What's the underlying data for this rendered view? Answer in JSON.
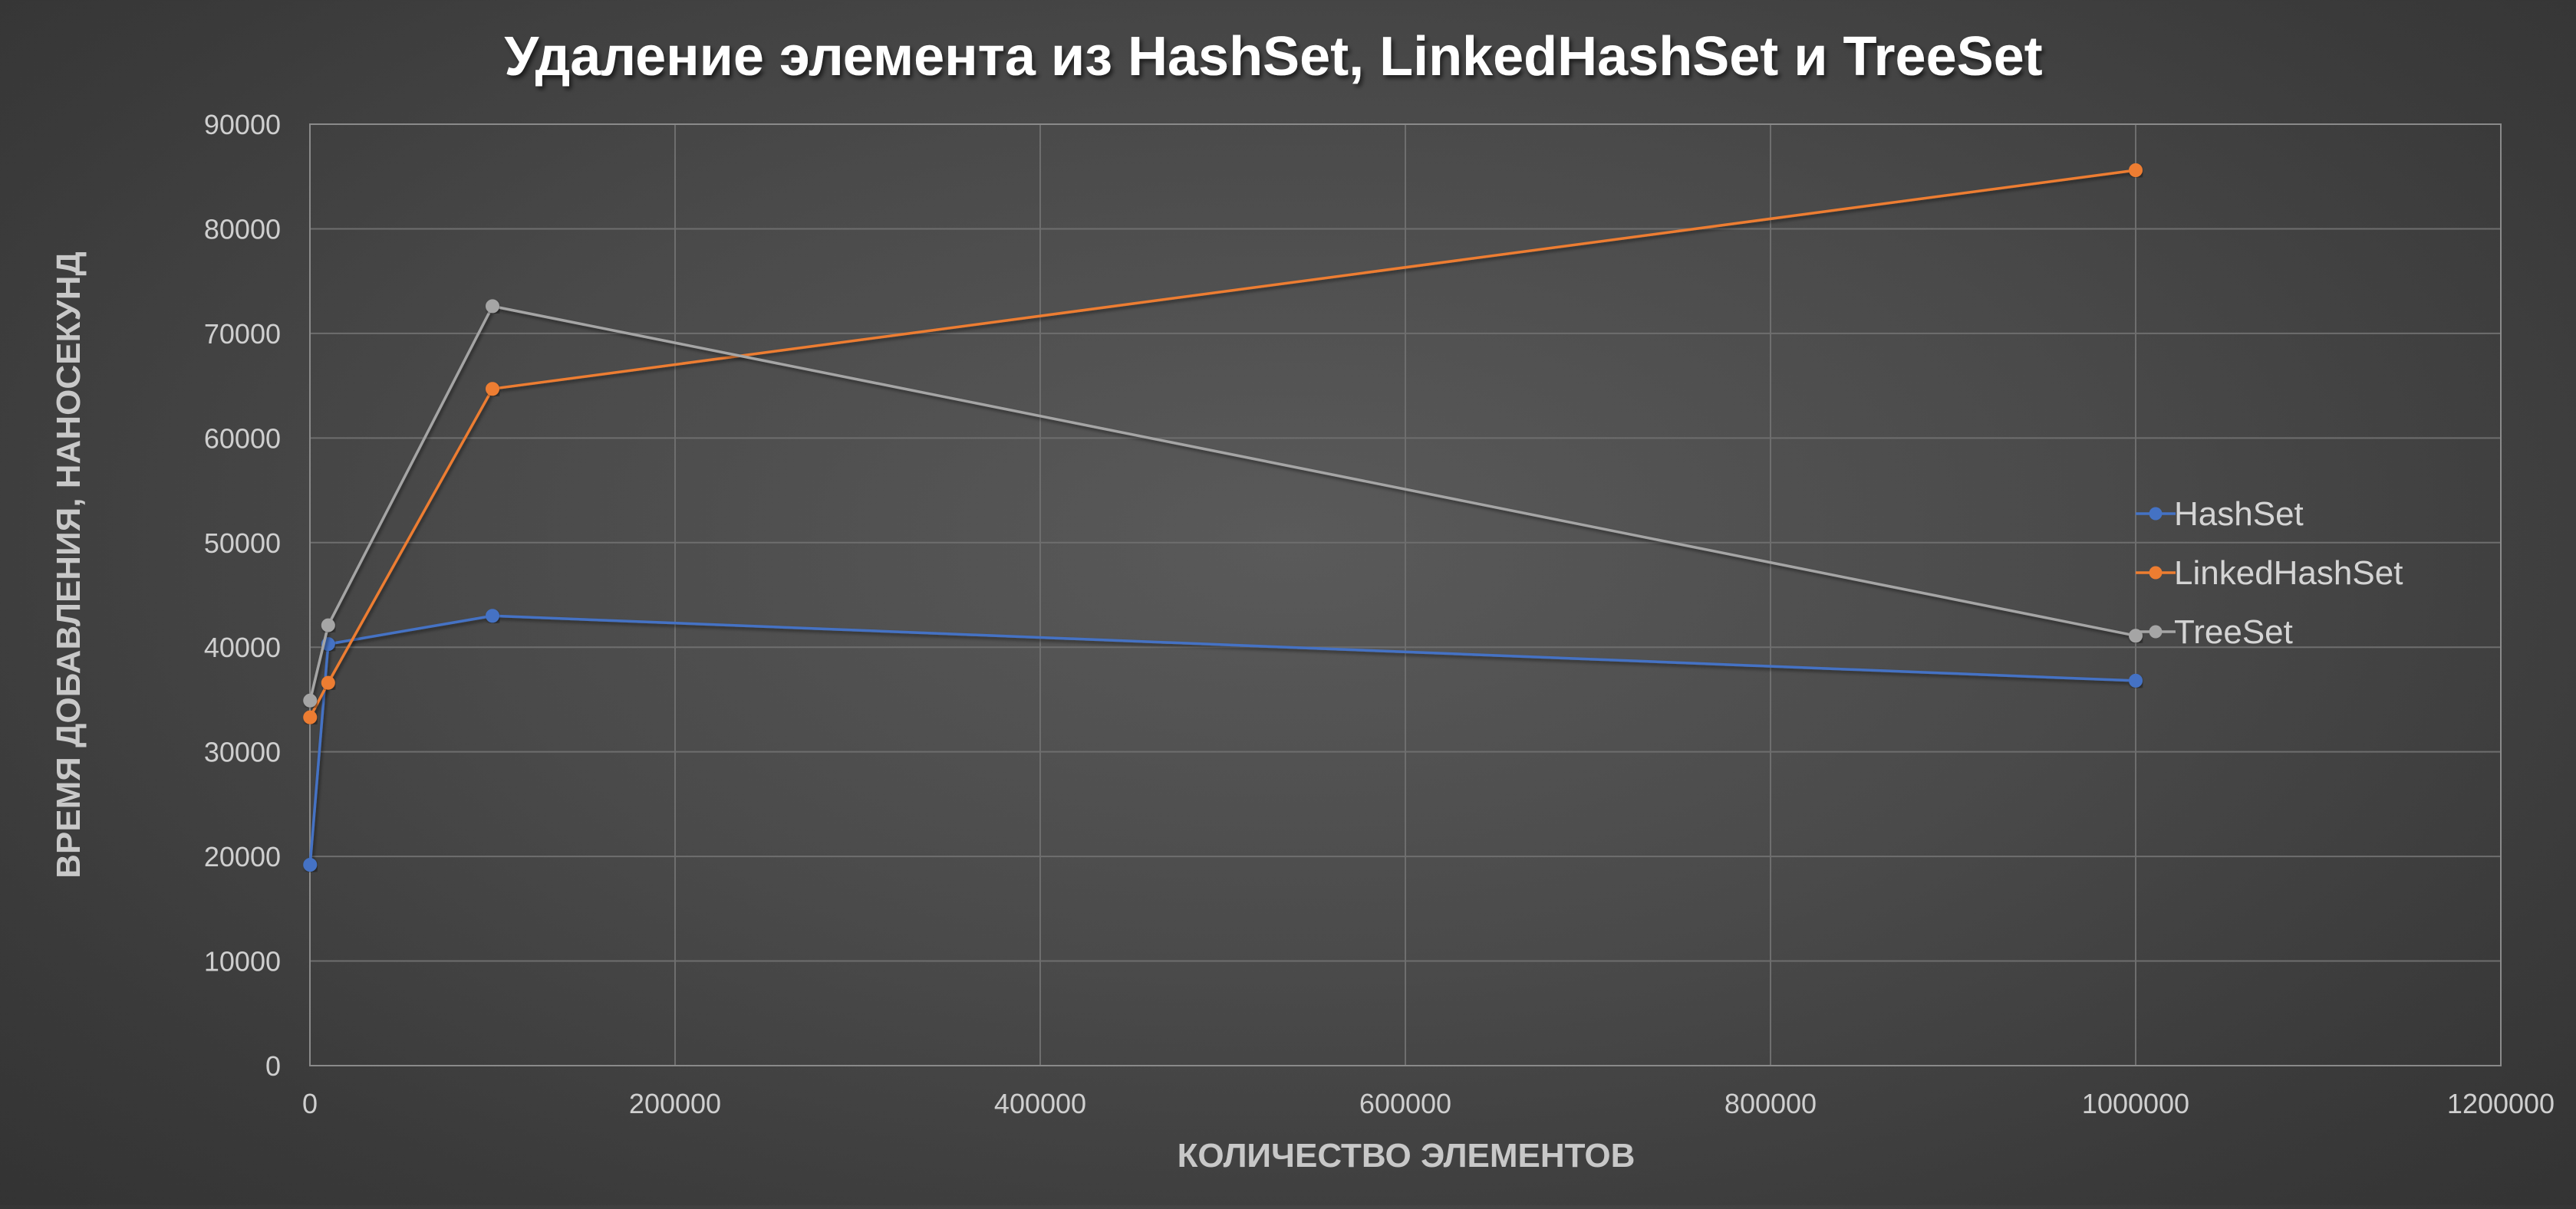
{
  "chart_data": {
    "type": "line",
    "title": "Удаление элемента из HashSet, LinkedHashSet и TreeSet",
    "xlabel": "КОЛИЧЕСТВО ЭЛЕМЕНТОВ",
    "ylabel": "ВРЕМЯ ДОБАВЛЕНИЯ, НАНОСЕКУНД",
    "xlim": [
      0,
      1200000
    ],
    "ylim": [
      0,
      90000
    ],
    "xticks": [
      0,
      200000,
      400000,
      600000,
      800000,
      1000000,
      1200000
    ],
    "xtick_labels": [
      "0",
      "200000",
      "400000",
      "600000",
      "800000",
      "1000000",
      "1200000"
    ],
    "yticks": [
      0,
      10000,
      20000,
      30000,
      40000,
      50000,
      60000,
      70000,
      80000,
      90000
    ],
    "ytick_labels": [
      "0",
      "10000",
      "20000",
      "30000",
      "40000",
      "50000",
      "60000",
      "70000",
      "80000",
      "90000"
    ],
    "grid": true,
    "legend_position": "right",
    "x": [
      100,
      10000,
      100000,
      1000000
    ],
    "series": [
      {
        "name": "HashSet",
        "color": "#4472c4",
        "values": [
          19200,
          40300,
          43000,
          36800
        ]
      },
      {
        "name": "LinkedHashSet",
        "color": "#ed7d31",
        "values": [
          33300,
          36600,
          64700,
          85600
        ]
      },
      {
        "name": "TreeSet",
        "color": "#a5a5a5",
        "values": [
          34900,
          42100,
          72600,
          41100
        ]
      }
    ]
  }
}
